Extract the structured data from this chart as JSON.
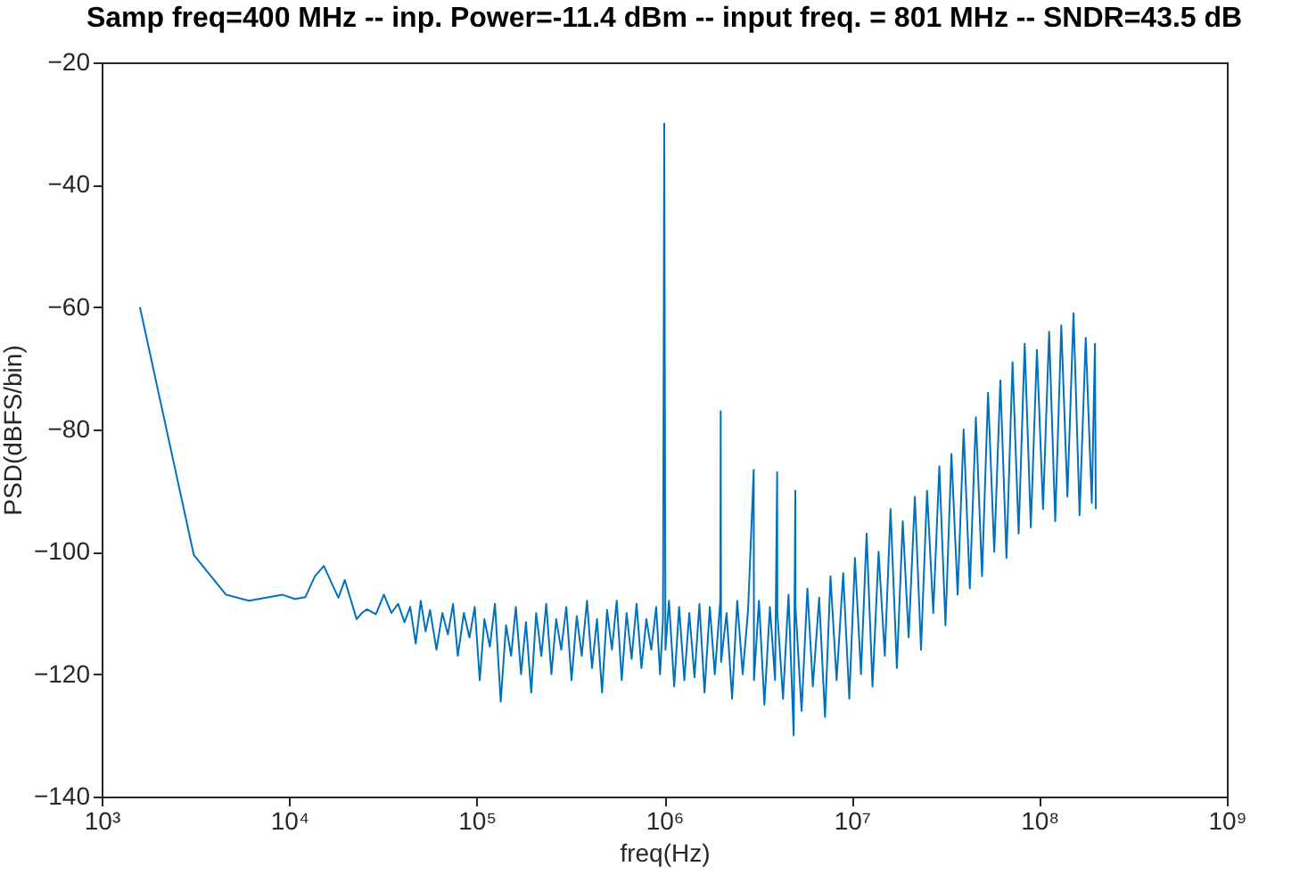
{
  "chart_data": {
    "type": "line",
    "title": "Samp freq=400 MHz --  inp. Power=-11.4 dBm --  input freq. = 801 MHz -- SNDR=43.5 dB",
    "xlabel": "freq(Hz)",
    "ylabel": "PSD(dBFS/bin)",
    "log": "x",
    "grid": false,
    "legend": false,
    "marker": "none",
    "line_style": "solid",
    "xlim": [
      1000,
      1000000000
    ],
    "ylim": [
      -140,
      -20
    ],
    "xticks": [
      {
        "value": 1000,
        "label": "10³"
      },
      {
        "value": 10000,
        "label": "10⁴"
      },
      {
        "value": 100000,
        "label": "10⁵"
      },
      {
        "value": 1000000,
        "label": "10⁶"
      },
      {
        "value": 10000000,
        "label": "10⁷"
      },
      {
        "value": 100000000,
        "label": "10⁸"
      },
      {
        "value": 1000000000,
        "label": "10⁹"
      }
    ],
    "yticks": [
      -140,
      -120,
      -100,
      -80,
      -60,
      -40,
      -20
    ],
    "x": [
      1600,
      3100,
      4600,
      6100,
      9200,
      10700,
      12200,
      13700,
      15300,
      18300,
      19800,
      22900,
      24400,
      26000,
      29000,
      32000,
      35100,
      38100,
      41200,
      44200,
      47300,
      50300,
      53400,
      56400,
      61000,
      65600,
      70200,
      74800,
      79300,
      85400,
      91500,
      97600,
      103800,
      109900,
      117500,
      125100,
      134300,
      143400,
      152600,
      161700,
      172400,
      183100,
      195300,
      207500,
      221200,
      234900,
      250200,
      265400,
      282200,
      300500,
      320300,
      341700,
      363100,
      387500,
      411900,
      438000,
      466000,
      495600,
      526100,
      558000,
      593200,
      630000,
      670000,
      712000,
      756000,
      803000,
      853000,
      906000,
      950000,
      985000,
      1000000,
      1015000,
      1060000,
      1130000,
      1200000,
      1280000,
      1360000,
      1450000,
      1540000,
      1640000,
      1750000,
      1860000,
      1990000,
      2000000,
      2010000,
      2150000,
      2300000,
      2450000,
      2620000,
      2800000,
      3000000,
      3010000,
      3200000,
      3420000,
      3660000,
      3900000,
      4000000,
      4010000,
      4300000,
      4600000,
      4900000,
      5000000,
      5010000,
      5400000,
      5800000,
      6200000,
      6700000,
      7200000,
      7700000,
      8300000,
      9000000,
      9700000,
      10400000,
      11200000,
      12000000,
      12900000,
      13900000,
      15000000,
      16100000,
      17400000,
      18700000,
      20100000,
      21700000,
      23400000,
      25200000,
      27200000,
      29300000,
      31600000,
      34000000,
      36700000,
      39500000,
      42600000,
      45900000,
      49500000,
      53300000,
      57500000,
      62000000,
      66800000,
      72000000,
      77600000,
      83600000,
      90100000,
      97100000,
      104700000,
      112800000,
      121600000,
      131000000,
      141200000,
      152200000,
      164000000,
      176800000,
      190500000,
      198000000,
      200000000
    ],
    "series": [
      {
        "color": "#0072bd",
        "values": [
          -60,
          -100.5,
          -107,
          -108,
          -107,
          -107.7,
          -107.4,
          -104,
          -102.3,
          -107.5,
          -104.6,
          -111,
          -110,
          -109.4,
          -110.2,
          -107,
          -110,
          -108.5,
          -111.5,
          -109,
          -115,
          -108,
          -113,
          -109.5,
          -116,
          -110,
          -113.5,
          -108.5,
          -117,
          -110,
          -114,
          -109,
          -121,
          -111,
          -115.5,
          -108.5,
          -124.5,
          -112,
          -117,
          -109,
          -120,
          -111.5,
          -123,
          -110,
          -117,
          -108.5,
          -120,
          -111,
          -116,
          -109,
          -121,
          -110.5,
          -117,
          -108,
          -119,
          -111,
          -123,
          -109.5,
          -116,
          -108,
          -121,
          -110,
          -117.5,
          -108.5,
          -119,
          -111,
          -116,
          -109,
          -120,
          -111,
          -30,
          -116,
          -108,
          -122,
          -109,
          -121,
          -110,
          -120.5,
          -108.5,
          -123,
          -109,
          -120,
          -108,
          -77,
          -118,
          -110,
          -124,
          -108,
          -120,
          -109.5,
          -86.6,
          -121,
          -108,
          -125,
          -109,
          -121,
          -87,
          -110,
          -124,
          -107,
          -130,
          -90,
          -109,
          -126,
          -106,
          -122,
          -107.5,
          -127,
          -104,
          -121,
          -103.5,
          -124,
          -101,
          -120,
          -97,
          -122,
          -100,
          -117,
          -93,
          -119,
          -95,
          -114,
          -91,
          -116,
          -90,
          -110,
          -86,
          -112,
          -84,
          -107,
          -80,
          -106,
          -78,
          -104,
          -74,
          -100,
          -72,
          -101,
          -69,
          -97,
          -66,
          -96,
          -67,
          -93,
          -64,
          -95,
          -63,
          -91,
          -61,
          -94,
          -65,
          -92,
          -66,
          -93
        ]
      }
    ]
  }
}
